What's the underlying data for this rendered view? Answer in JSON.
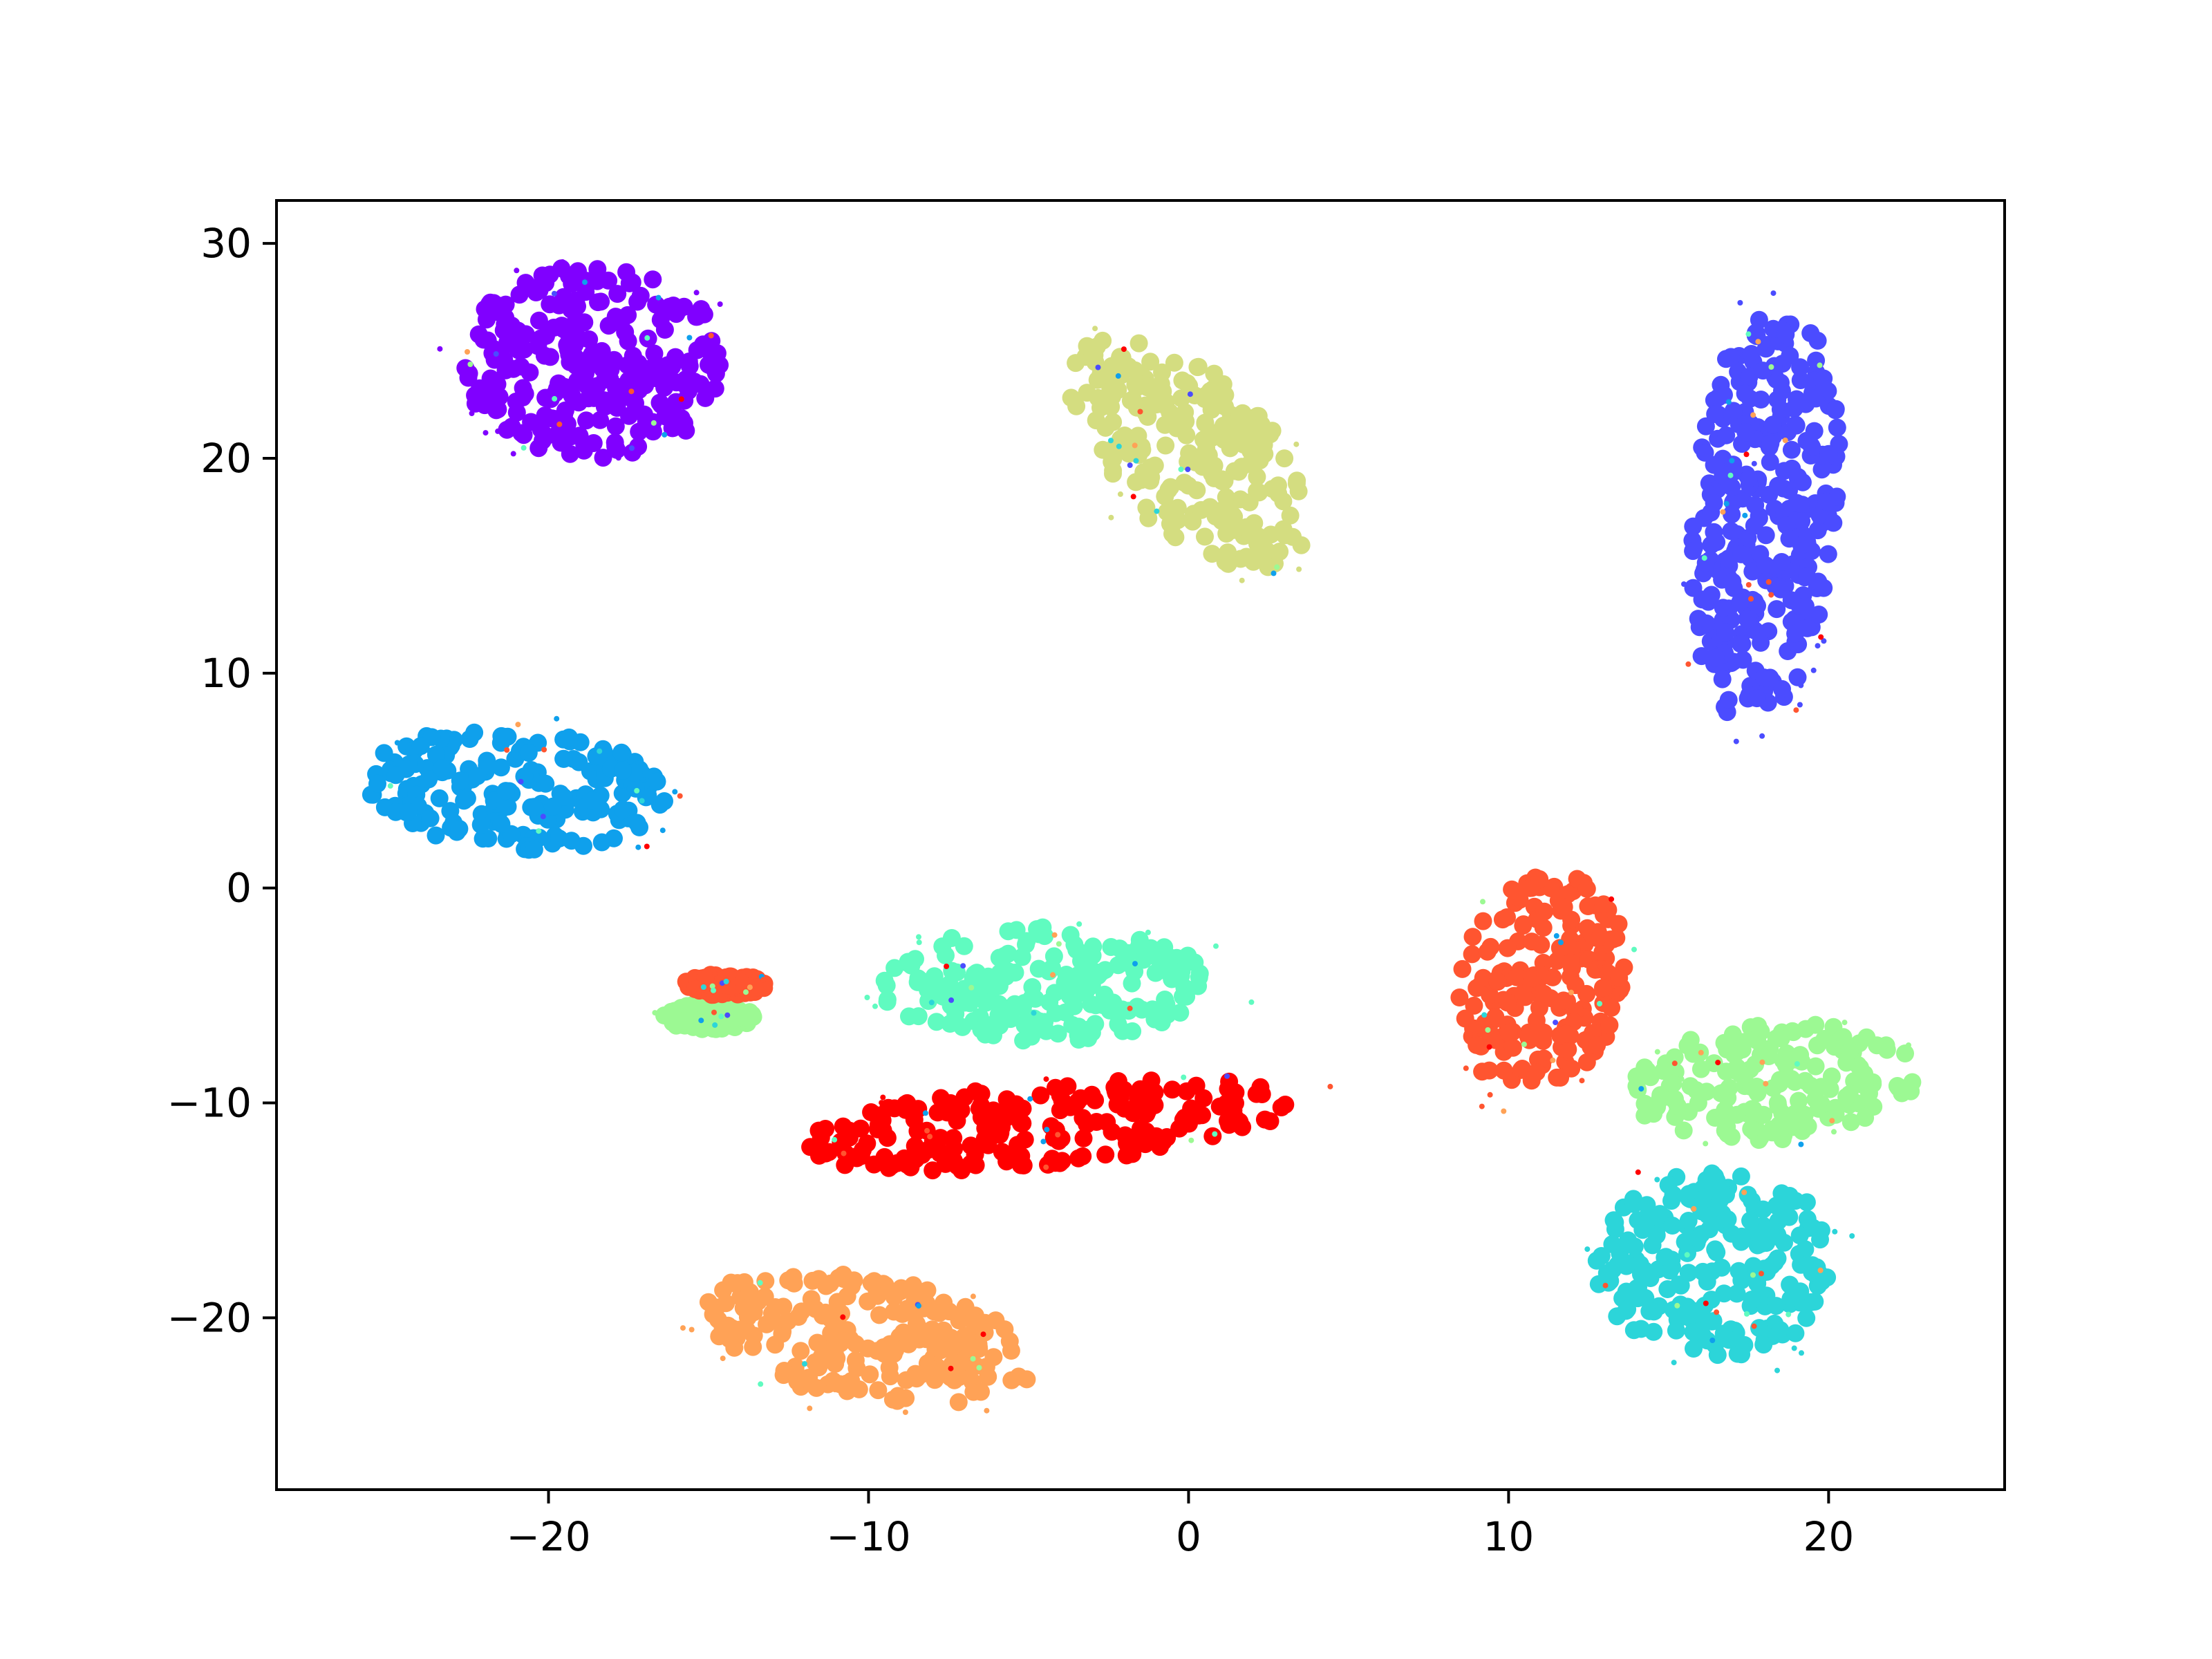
{
  "chart_data": {
    "type": "scatter",
    "title": "",
    "xlabel": "",
    "ylabel": "",
    "xlim": [
      -28.5,
      25.5
    ],
    "ylim": [
      -28,
      32
    ],
    "xticks": [
      -20,
      -10,
      0,
      10,
      20
    ],
    "yticks": [
      -20,
      -10,
      0,
      10,
      20,
      30
    ],
    "xtick_labels": [
      "−20",
      "−10",
      "0",
      "10",
      "20"
    ],
    "ytick_labels": [
      "−20",
      "−10",
      "0",
      "10",
      "20",
      "30"
    ],
    "grid": false,
    "legend": "none",
    "clusters": [
      {
        "color": "#8000ff",
        "center": [
          -18.5,
          24.5
        ],
        "radius": [
          4.3,
          4.5
        ],
        "angle": 0
      },
      {
        "color": "#d4dd80",
        "center": [
          0.0,
          20.3
        ],
        "radius": [
          2.8,
          6.0
        ],
        "angle": 28
      },
      {
        "color": "#4b4cff",
        "center": [
          18.0,
          17.5
        ],
        "radius": [
          2.3,
          9.8
        ],
        "angle": -3
      },
      {
        "color": "#0fa0ec",
        "center": [
          -21.0,
          4.6
        ],
        "radius": [
          4.8,
          2.8
        ],
        "angle": -8
      },
      {
        "color": "#ff5530",
        "center": [
          11.0,
          -4.5
        ],
        "radius": [
          2.6,
          5.3
        ],
        "angle": -8
      },
      {
        "color": "#60fbc0",
        "center": [
          -4.5,
          -4.5
        ],
        "radius": [
          5.2,
          2.7
        ],
        "angle": 0
      },
      {
        "color": "#9cf993",
        "center": [
          18.3,
          -9.0
        ],
        "radius": [
          4.6,
          2.7
        ],
        "angle": 10
      },
      {
        "color": "#ff0000",
        "center": [
          -4.5,
          -11.0
        ],
        "radius": [
          7.8,
          1.9
        ],
        "angle": 8
      },
      {
        "color": "#2cd5d9",
        "center": [
          16.5,
          -17.5
        ],
        "radius": [
          3.8,
          4.3
        ],
        "angle": 0
      },
      {
        "color": "#ffa256",
        "center": [
          -10.0,
          -21.0
        ],
        "radius": [
          5.3,
          2.9
        ],
        "angle": -20
      },
      {
        "color": "#9cf993",
        "center": [
          -15.0,
          -6.0
        ],
        "radius": [
          1.4,
          0.6
        ],
        "angle": 0
      },
      {
        "color": "#ff5530",
        "center": [
          -14.5,
          -4.5
        ],
        "radius": [
          1.3,
          0.5
        ],
        "angle": 0
      }
    ],
    "noise_colors": [
      "#ff0000",
      "#ff5530",
      "#2cd5d9",
      "#9cf993",
      "#60fbc0",
      "#ffa256",
      "#0fa0ec",
      "#4b4cff"
    ]
  }
}
